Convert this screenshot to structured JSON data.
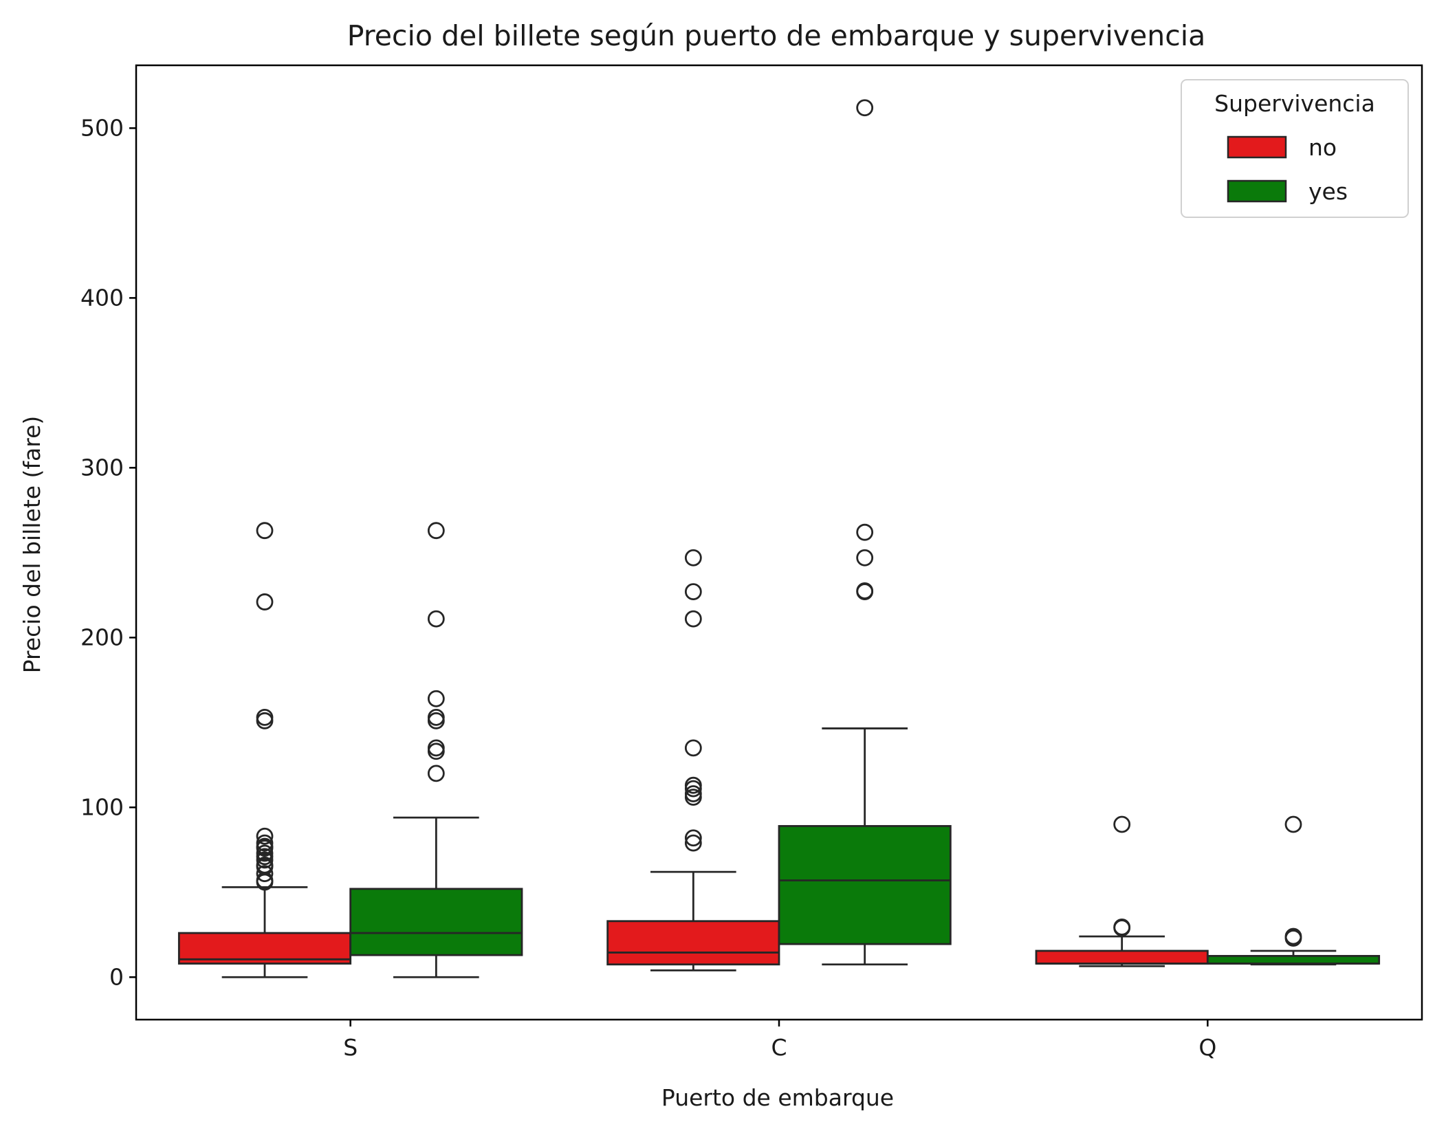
{
  "chart_data": {
    "type": "box",
    "title": "Precio del billete según puerto de embarque y supervivencia",
    "xlabel": "Puerto de embarque",
    "ylabel": "Precio del billete (fare)",
    "categories": [
      "S",
      "C",
      "Q"
    ],
    "ylim": [
      -25,
      537
    ],
    "yticks": [
      0,
      100,
      200,
      300,
      400,
      500
    ],
    "legend": {
      "title": "Supervivencia",
      "placement": "top-right",
      "entries": [
        {
          "label": "no",
          "color": "#e31a1c"
        },
        {
          "label": "yes",
          "color": "#0a7a0a"
        }
      ]
    },
    "series": [
      {
        "name": "no",
        "color": "#e31a1c",
        "boxes": [
          {
            "category": "S",
            "q1": 8,
            "median": 10.5,
            "q3": 26,
            "whisker_low": 0,
            "whisker_high": 53,
            "outliers": [
              56,
              57,
              61,
              65,
              66,
              69,
              71,
              73,
              76,
              77,
              79,
              83,
              151,
              153,
              221,
              263
            ]
          },
          {
            "category": "C",
            "q1": 7.5,
            "median": 14.5,
            "q3": 33,
            "whisker_low": 4,
            "whisker_high": 62,
            "outliers": [
              79,
              82,
              106,
              108,
              111,
              113,
              135,
              211,
              227,
              247
            ]
          },
          {
            "category": "Q",
            "q1": 8,
            "median": 8,
            "q3": 15.5,
            "whisker_low": 6.5,
            "whisker_high": 24,
            "outliers": [
              29,
              29.5,
              90
            ]
          }
        ]
      },
      {
        "name": "yes",
        "color": "#0a7a0a",
        "boxes": [
          {
            "category": "S",
            "q1": 13,
            "median": 26,
            "q3": 52,
            "whisker_low": 0,
            "whisker_high": 94,
            "outliers": [
              120,
              133,
              135,
              151,
              153,
              164,
              211,
              263
            ]
          },
          {
            "category": "C",
            "q1": 19.5,
            "median": 57,
            "q3": 89,
            "whisker_low": 7.5,
            "whisker_high": 146.5,
            "outliers": [
              227,
              227.5,
              247,
              262,
              512
            ]
          },
          {
            "category": "Q",
            "q1": 8,
            "median": 8,
            "q3": 12.5,
            "whisker_low": 7.5,
            "whisker_high": 15.5,
            "outliers": [
              23,
              24,
              90
            ]
          }
        ]
      }
    ]
  }
}
